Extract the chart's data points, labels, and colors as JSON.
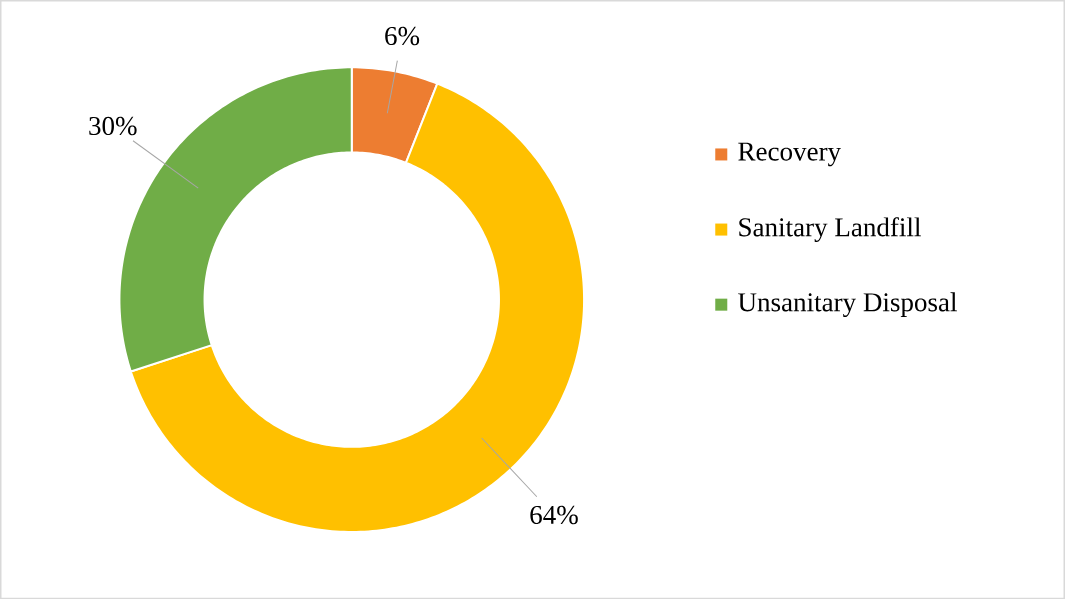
{
  "chart_data": {
    "type": "donut",
    "categories": [
      "Recovery",
      "Sanitary Landfill",
      "Unsanitary Disposal"
    ],
    "values": [
      6,
      64,
      30
    ],
    "colors": [
      "#ed7d31",
      "#ffc000",
      "#70ad47"
    ],
    "value_labels": [
      "6%",
      "64%",
      "30%"
    ],
    "legend": "right"
  }
}
